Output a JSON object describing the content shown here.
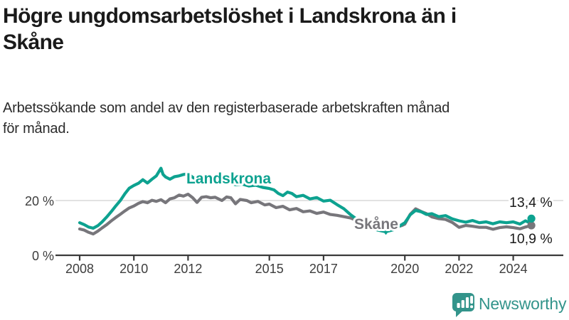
{
  "header": {
    "title_lines": [
      "Högre ungdomsarbetslöshet i Landskrona än i",
      "Skåne"
    ],
    "subtitle_lines": [
      "Arbetssökande som andel av den registerbaserade arbetskraften månad",
      "för månad."
    ]
  },
  "chart_data": {
    "type": "line",
    "title": "Högre ungdomsarbetslöshet i Landskrona än i Skåne",
    "subtitle": "Arbetssökande som andel av den registerbaserade arbetskraften månad för månad.",
    "unit": "%",
    "xlim": [
      2007.9,
      2025.0
    ],
    "ylim": [
      0,
      33
    ],
    "grid": "y-20-only",
    "legend_position": "inline-line-labels",
    "y_ticks": [
      {
        "value": 0,
        "label": "0 %"
      },
      {
        "value": 20,
        "label": "20 %"
      }
    ],
    "x_ticks": [
      {
        "year": 2008,
        "label": "2008"
      },
      {
        "year": 2010,
        "label": "2010"
      },
      {
        "year": 2012,
        "label": "2012"
      },
      {
        "year": 2015,
        "label": "2015"
      },
      {
        "year": 2017,
        "label": "2017"
      },
      {
        "year": 2020,
        "label": "2020"
      },
      {
        "year": 2022,
        "label": "2022"
      },
      {
        "year": 2024,
        "label": "2024"
      }
    ],
    "series": [
      {
        "name": "Landskrona",
        "color": "#0da290",
        "end_value": 13.4,
        "end_label": "13,4 %",
        "points": [
          [
            2008.0,
            11.9
          ],
          [
            2008.17,
            11.2
          ],
          [
            2008.33,
            10.3
          ],
          [
            2008.5,
            9.9
          ],
          [
            2008.67,
            10.8
          ],
          [
            2008.83,
            12.2
          ],
          [
            2009.0,
            14.0
          ],
          [
            2009.17,
            16.0
          ],
          [
            2009.33,
            18.0
          ],
          [
            2009.5,
            20.0
          ],
          [
            2009.67,
            22.5
          ],
          [
            2009.83,
            24.5
          ],
          [
            2010.0,
            25.5
          ],
          [
            2010.17,
            26.3
          ],
          [
            2010.33,
            27.6
          ],
          [
            2010.5,
            26.4
          ],
          [
            2010.67,
            27.8
          ],
          [
            2010.83,
            29.0
          ],
          [
            2011.0,
            31.8
          ],
          [
            2011.08,
            29.5
          ],
          [
            2011.17,
            28.6
          ],
          [
            2011.33,
            27.8
          ],
          [
            2011.5,
            28.7
          ],
          [
            2011.67,
            29.0
          ],
          [
            2011.83,
            29.5
          ],
          [
            2012.0,
            29.8
          ],
          [
            2012.17,
            28.5
          ],
          [
            2012.33,
            27.5
          ],
          [
            2012.5,
            27.9
          ],
          [
            2012.67,
            27.2
          ],
          [
            2012.83,
            26.5
          ],
          [
            2013.0,
            27.0
          ],
          [
            2013.25,
            26.3
          ],
          [
            2013.5,
            26.6
          ],
          [
            2013.75,
            25.8
          ],
          [
            2014.0,
            26.0
          ],
          [
            2014.25,
            25.3
          ],
          [
            2014.5,
            25.6
          ],
          [
            2014.75,
            24.8
          ],
          [
            2015.0,
            24.4
          ],
          [
            2015.17,
            23.9
          ],
          [
            2015.33,
            22.6
          ],
          [
            2015.5,
            21.8
          ],
          [
            2015.67,
            23.1
          ],
          [
            2015.83,
            22.6
          ],
          [
            2016.0,
            21.4
          ],
          [
            2016.25,
            21.9
          ],
          [
            2016.5,
            20.6
          ],
          [
            2016.75,
            21.1
          ],
          [
            2017.0,
            19.8
          ],
          [
            2017.25,
            20.1
          ],
          [
            2017.5,
            18.5
          ],
          [
            2017.75,
            17.0
          ],
          [
            2018.0,
            14.8
          ],
          [
            2018.25,
            13.0
          ],
          [
            2018.5,
            11.5
          ],
          [
            2018.75,
            10.0
          ],
          [
            2019.0,
            9.2
          ],
          [
            2019.3,
            8.6
          ],
          [
            2019.6,
            9.4
          ],
          [
            2019.9,
            11.3
          ],
          [
            2020.0,
            11.9
          ],
          [
            2020.2,
            14.8
          ],
          [
            2020.4,
            16.4
          ],
          [
            2020.6,
            15.9
          ],
          [
            2020.8,
            14.9
          ],
          [
            2021.0,
            15.2
          ],
          [
            2021.25,
            14.1
          ],
          [
            2021.5,
            14.5
          ],
          [
            2021.75,
            13.3
          ],
          [
            2022.0,
            12.6
          ],
          [
            2022.25,
            12.1
          ],
          [
            2022.5,
            12.7
          ],
          [
            2022.75,
            11.9
          ],
          [
            2023.0,
            12.2
          ],
          [
            2023.25,
            11.5
          ],
          [
            2023.5,
            12.2
          ],
          [
            2023.75,
            11.9
          ],
          [
            2024.0,
            12.2
          ],
          [
            2024.25,
            11.4
          ],
          [
            2024.45,
            12.6
          ],
          [
            2024.58,
            12.0
          ],
          [
            2024.67,
            13.4
          ]
        ]
      },
      {
        "name": "Skåne",
        "color": "#77767b",
        "end_value": 10.9,
        "end_label": "10,9 %",
        "points": [
          [
            2008.0,
            9.6
          ],
          [
            2008.17,
            9.2
          ],
          [
            2008.33,
            8.4
          ],
          [
            2008.5,
            7.8
          ],
          [
            2008.67,
            8.8
          ],
          [
            2008.83,
            10.0
          ],
          [
            2009.0,
            11.2
          ],
          [
            2009.17,
            12.6
          ],
          [
            2009.33,
            13.8
          ],
          [
            2009.5,
            15.0
          ],
          [
            2009.67,
            16.2
          ],
          [
            2009.83,
            17.3
          ],
          [
            2010.0,
            18.0
          ],
          [
            2010.17,
            19.0
          ],
          [
            2010.33,
            19.6
          ],
          [
            2010.5,
            19.2
          ],
          [
            2010.67,
            20.1
          ],
          [
            2010.83,
            19.7
          ],
          [
            2011.0,
            20.3
          ],
          [
            2011.17,
            19.2
          ],
          [
            2011.33,
            20.6
          ],
          [
            2011.5,
            21.0
          ],
          [
            2011.67,
            22.0
          ],
          [
            2011.83,
            21.6
          ],
          [
            2012.0,
            22.3
          ],
          [
            2012.17,
            21.0
          ],
          [
            2012.33,
            19.3
          ],
          [
            2012.5,
            21.2
          ],
          [
            2012.67,
            21.4
          ],
          [
            2012.83,
            21.0
          ],
          [
            2013.0,
            21.2
          ],
          [
            2013.25,
            20.0
          ],
          [
            2013.42,
            21.3
          ],
          [
            2013.58,
            21.0
          ],
          [
            2013.75,
            18.8
          ],
          [
            2013.92,
            20.4
          ],
          [
            2014.17,
            20.0
          ],
          [
            2014.33,
            19.2
          ],
          [
            2014.58,
            19.7
          ],
          [
            2014.83,
            18.4
          ],
          [
            2015.0,
            18.7
          ],
          [
            2015.25,
            17.4
          ],
          [
            2015.5,
            17.9
          ],
          [
            2015.75,
            16.6
          ],
          [
            2016.0,
            17.1
          ],
          [
            2016.25,
            15.9
          ],
          [
            2016.5,
            16.2
          ],
          [
            2016.75,
            15.3
          ],
          [
            2017.0,
            15.8
          ],
          [
            2017.25,
            14.9
          ],
          [
            2017.5,
            14.6
          ],
          [
            2017.75,
            14.1
          ],
          [
            2018.0,
            13.6
          ],
          [
            2018.25,
            12.6
          ],
          [
            2018.5,
            11.6
          ],
          [
            2018.75,
            10.8
          ],
          [
            2019.0,
            10.2
          ],
          [
            2019.3,
            9.6
          ],
          [
            2019.6,
            10.0
          ],
          [
            2019.9,
            10.9
          ],
          [
            2020.0,
            11.4
          ],
          [
            2020.2,
            15.0
          ],
          [
            2020.4,
            17.0
          ],
          [
            2020.6,
            16.0
          ],
          [
            2020.8,
            15.2
          ],
          [
            2021.0,
            14.0
          ],
          [
            2021.25,
            13.4
          ],
          [
            2021.5,
            13.1
          ],
          [
            2021.75,
            12.0
          ],
          [
            2022.0,
            10.2
          ],
          [
            2022.25,
            10.9
          ],
          [
            2022.5,
            10.6
          ],
          [
            2022.75,
            10.2
          ],
          [
            2023.0,
            10.2
          ],
          [
            2023.25,
            9.5
          ],
          [
            2023.5,
            10.1
          ],
          [
            2023.75,
            10.4
          ],
          [
            2024.0,
            10.1
          ],
          [
            2024.25,
            9.7
          ],
          [
            2024.45,
            10.3
          ],
          [
            2024.67,
            10.9
          ]
        ]
      }
    ],
    "annotation": {
      "type": "triangle-marker",
      "series": "Landskrona",
      "year": 2019.3,
      "value": 8.6
    }
  },
  "footer": {
    "brand": "Newsworthy"
  },
  "colors": {
    "accent_teal": "#0da290",
    "line_gray": "#77767b",
    "gridline": "#d9d9d9",
    "axis": "#3a3a3a",
    "text": "#1a1a1a",
    "brand_teal": "#33948b"
  }
}
